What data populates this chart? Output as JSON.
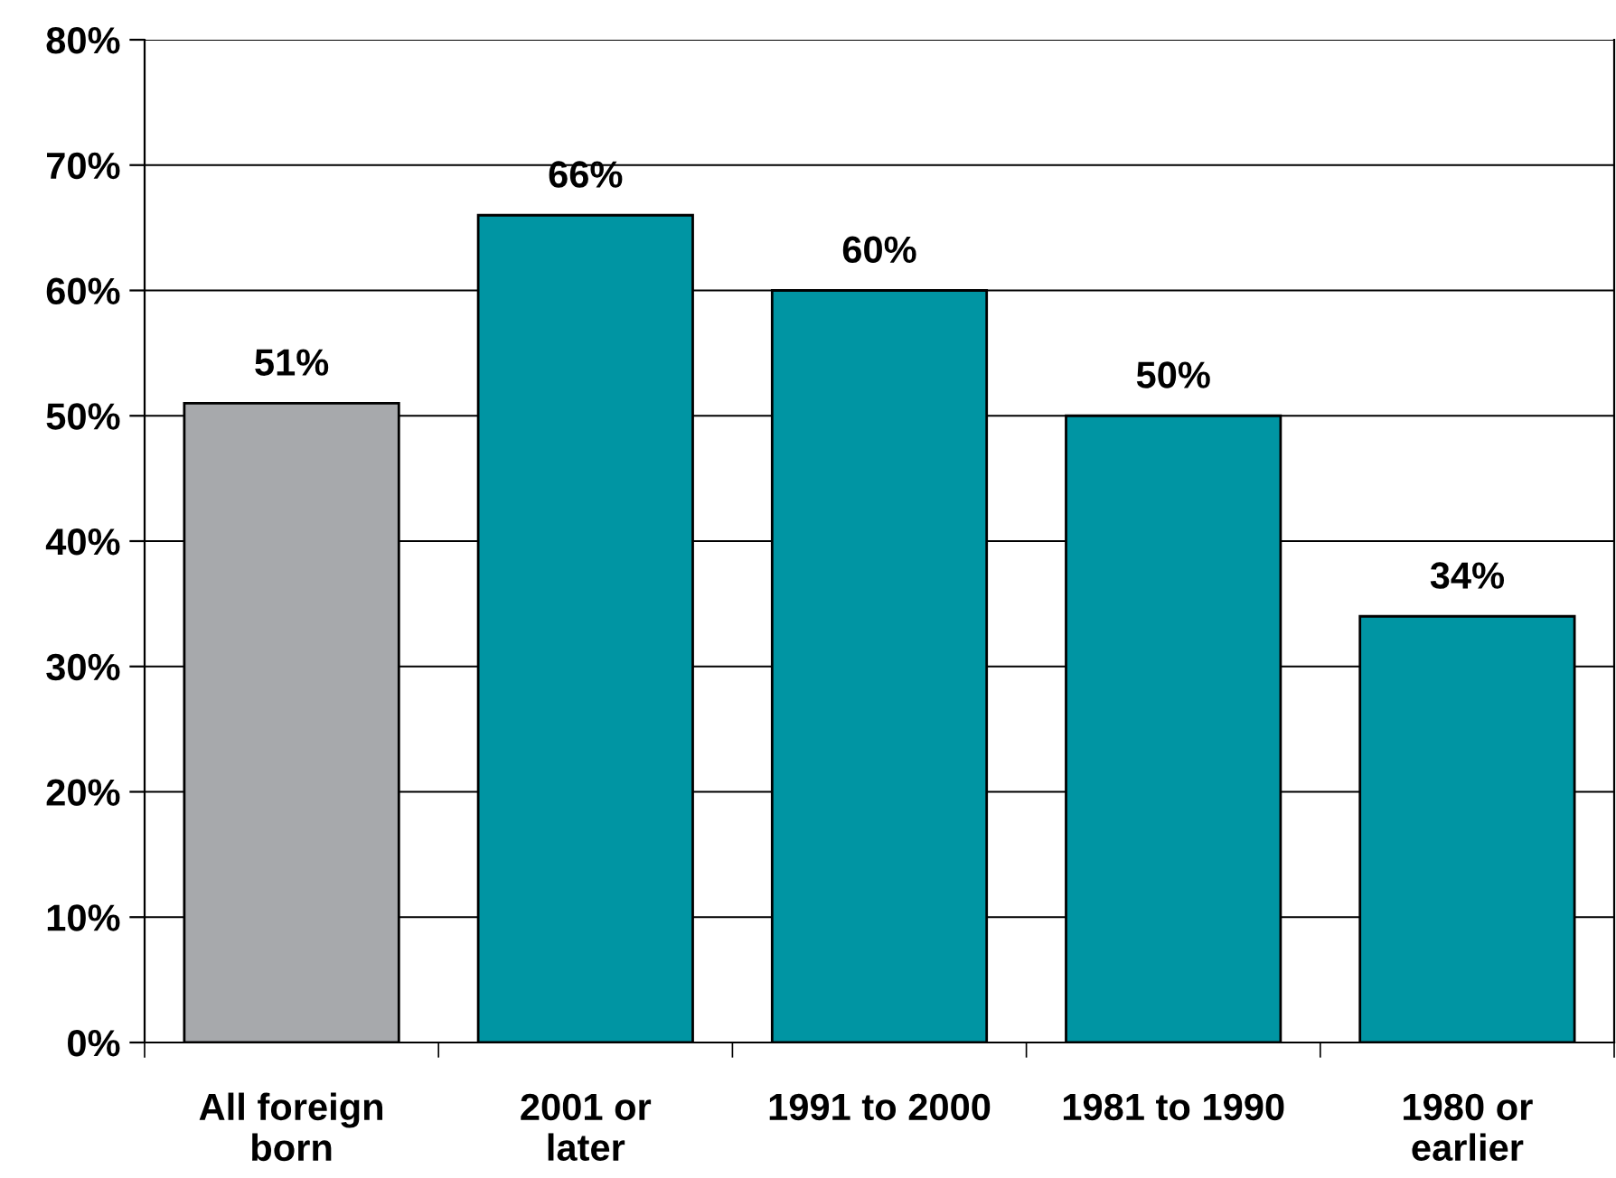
{
  "chart_data": {
    "type": "bar",
    "categories": [
      "All foreign\nborn",
      "2001 or\nlater",
      "1991 to 2000",
      "1981 to 1990",
      "1980 or\nearlier"
    ],
    "values": [
      51,
      66,
      60,
      50,
      34
    ],
    "colors": [
      "#a7a9ac",
      "#0095a3",
      "#0095a3",
      "#0095a3",
      "#0095a3"
    ],
    "value_labels": [
      "51%",
      "66%",
      "60%",
      "50%",
      "34%"
    ],
    "ylim": [
      0,
      80
    ],
    "yticks": [
      {
        "value": 0,
        "label": "0%"
      },
      {
        "value": 10,
        "label": "10%"
      },
      {
        "value": 20,
        "label": "20%"
      },
      {
        "value": 30,
        "label": "30%"
      },
      {
        "value": 40,
        "label": "40%"
      },
      {
        "value": 50,
        "label": "50%"
      },
      {
        "value": 60,
        "label": "60%"
      },
      {
        "value": 70,
        "label": "70%"
      },
      {
        "value": 80,
        "label": "80%"
      }
    ],
    "grid": "y",
    "legend": false
  }
}
